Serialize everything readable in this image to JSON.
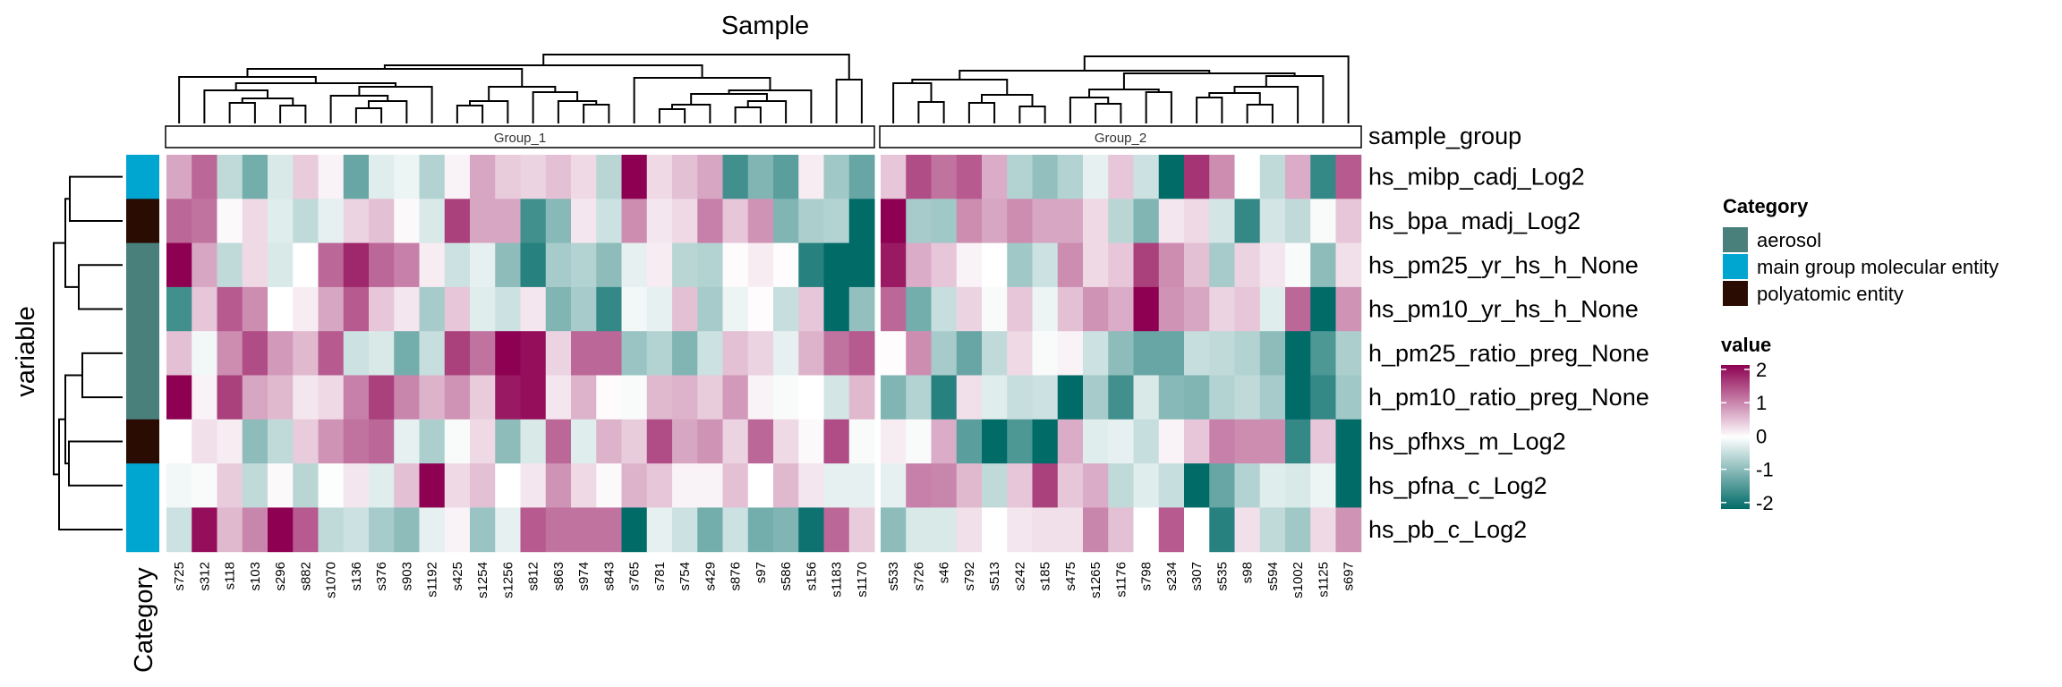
{
  "chart_data": {
    "type": "heatmap",
    "title": "Sample",
    "xlabel": "Sample",
    "ylabel": "variable",
    "row_annotation_label": "Category",
    "column_annotation_label": "sample_group",
    "rows": [
      "hs_mibp_cadj_Log2",
      "hs_bpa_madj_Log2",
      "hs_pm25_yr_hs_h_None",
      "hs_pm10_yr_hs_h_None",
      "h_pm25_ratio_preg_None",
      "h_pm10_ratio_preg_None",
      "hs_pfhxs_m_Log2",
      "hs_pfna_c_Log2",
      "hs_pb_c_Log2"
    ],
    "row_categories": [
      "main group molecular entity",
      "polyatomic entity",
      "aerosol",
      "aerosol",
      "aerosol",
      "aerosol",
      "polyatomic entity",
      "main group molecular entity",
      "main group molecular entity"
    ],
    "columns": [
      "s725",
      "s312",
      "s118",
      "s103",
      "s296",
      "s882",
      "s1070",
      "s136",
      "s376",
      "s903",
      "s1192",
      "s425",
      "s1254",
      "s1256",
      "s812",
      "s863",
      "s974",
      "s843",
      "s765",
      "s781",
      "s754",
      "s429",
      "s876",
      "s97",
      "s586",
      "s156",
      "s1183",
      "s1170",
      "s533",
      "s726",
      "s46",
      "s792",
      "s513",
      "s242",
      "s185",
      "s475",
      "s1265",
      "s1176",
      "s798",
      "s234",
      "s307",
      "s535",
      "s98",
      "s594",
      "s1002",
      "s1125",
      "s697"
    ],
    "groups": [
      {
        "label": "Group_1",
        "count": 28
      },
      {
        "label": "Group_2",
        "count": 19
      }
    ],
    "values": [
      [
        0.7,
        1.2,
        -0.5,
        -1.1,
        -0.3,
        0.4,
        0.1,
        -1.2,
        -0.25,
        -0.15,
        -0.6,
        0.1,
        0.7,
        0.4,
        0.35,
        0.5,
        0.3,
        -0.55,
        2.2,
        0.3,
        0.5,
        0.7,
        -1.5,
        -1.0,
        -1.3,
        0.15,
        -0.75,
        -1.2,
        0.45,
        1.4,
        1.1,
        1.3,
        0.65,
        -0.6,
        -0.85,
        -0.6,
        -0.2,
        0.45,
        -0.4,
        -2.3,
        1.6,
        0.9,
        0.0,
        -0.5,
        0.65,
        -1.6,
        1.3
      ],
      [
        1.2,
        1.1,
        0.05,
        0.3,
        -0.25,
        -0.5,
        -0.2,
        0.35,
        0.5,
        0.05,
        -0.3,
        1.5,
        0.7,
        0.7,
        -1.5,
        -0.95,
        0.2,
        -0.4,
        0.9,
        0.2,
        0.3,
        1.0,
        0.45,
        0.85,
        -1.0,
        -0.65,
        -0.6,
        -2.3,
        2.3,
        -0.7,
        -0.75,
        0.9,
        0.7,
        0.9,
        0.7,
        0.7,
        0.3,
        -0.55,
        -1.0,
        0.2,
        0.3,
        -0.35,
        -1.6,
        -0.35,
        -0.5,
        -0.05,
        0.45
      ],
      [
        2.3,
        0.7,
        -0.5,
        0.3,
        -0.3,
        0.0,
        1.2,
        1.7,
        1.2,
        1.0,
        0.15,
        -0.4,
        -0.2,
        -0.9,
        -1.7,
        -0.7,
        -0.6,
        -0.9,
        -0.2,
        0.15,
        -0.55,
        -0.6,
        0.03,
        0.15,
        0.02,
        -1.7,
        -2.3,
        -2.3,
        1.8,
        0.65,
        0.45,
        0.1,
        0.0,
        -0.75,
        -0.4,
        0.9,
        0.3,
        0.45,
        1.5,
        0.9,
        0.5,
        -0.7,
        0.35,
        0.2,
        -0.05,
        -0.9,
        0.25
      ],
      [
        -1.5,
        0.45,
        1.3,
        0.9,
        0.0,
        0.15,
        0.7,
        1.3,
        0.45,
        0.2,
        -0.7,
        0.45,
        -0.25,
        -0.4,
        0.2,
        -1.0,
        -0.7,
        -1.6,
        -0.1,
        -0.2,
        0.5,
        -0.7,
        -0.15,
        0.02,
        -0.45,
        0.45,
        -2.3,
        -0.85,
        1.2,
        -1.1,
        -0.45,
        0.35,
        -0.05,
        0.45,
        -0.15,
        0.5,
        0.85,
        0.65,
        2.3,
        0.85,
        0.7,
        0.35,
        0.45,
        -0.25,
        1.2,
        -2.3,
        0.85
      ],
      [
        0.5,
        -0.1,
        0.9,
        1.4,
        0.8,
        0.55,
        1.3,
        -0.4,
        -0.3,
        -1.1,
        -0.45,
        1.5,
        1.1,
        2.2,
        1.9,
        0.35,
        1.2,
        1.2,
        -0.8,
        -0.6,
        -1.0,
        -0.4,
        0.5,
        0.35,
        -0.2,
        0.6,
        1.1,
        1.3,
        0.02,
        0.9,
        -0.7,
        -1.2,
        -0.5,
        0.3,
        -0.05,
        0.1,
        -0.4,
        -0.9,
        -1.2,
        -1.2,
        -0.45,
        -0.5,
        -0.6,
        -0.9,
        -2.3,
        -1.4,
        -0.65
      ],
      [
        2.3,
        0.1,
        1.5,
        0.7,
        0.55,
        0.2,
        0.3,
        1.0,
        1.5,
        0.95,
        0.6,
        0.85,
        0.4,
        1.8,
        1.9,
        0.2,
        0.6,
        0.03,
        -0.05,
        0.55,
        0.6,
        0.4,
        0.8,
        0.1,
        -0.05,
        0.0,
        -0.35,
        0.55,
        -1.0,
        -0.6,
        -1.7,
        0.25,
        -0.25,
        -0.45,
        -0.4,
        -2.3,
        -0.7,
        -1.5,
        -0.3,
        -0.95,
        -1.0,
        -0.6,
        -0.5,
        -0.7,
        -2.3,
        -1.6,
        -0.75
      ],
      [
        0.0,
        0.25,
        0.15,
        -0.9,
        -0.5,
        0.4,
        0.85,
        1.1,
        1.2,
        -0.2,
        -0.65,
        -0.05,
        0.3,
        -0.9,
        -0.3,
        1.2,
        -0.25,
        0.6,
        0.4,
        1.4,
        0.7,
        0.85,
        0.35,
        1.2,
        0.3,
        0.05,
        1.4,
        -0.05,
        0.15,
        -0.05,
        0.65,
        -1.3,
        -2.3,
        -1.4,
        -2.3,
        0.65,
        -0.25,
        -0.2,
        -0.45,
        0.1,
        0.45,
        1.0,
        0.9,
        0.9,
        -1.6,
        0.45,
        -2.3
      ],
      [
        -0.1,
        -0.05,
        0.4,
        -0.5,
        0.05,
        -0.55,
        -0.02,
        0.2,
        -0.25,
        0.5,
        2.3,
        0.3,
        0.5,
        0.0,
        0.2,
        0.85,
        0.3,
        0.05,
        0.6,
        0.45,
        0.1,
        0.1,
        0.5,
        0.0,
        0.55,
        0.2,
        -0.2,
        -0.2,
        -0.2,
        1.0,
        0.95,
        0.55,
        -0.5,
        0.45,
        1.5,
        0.45,
        0.65,
        -0.5,
        -0.25,
        -0.45,
        -2.2,
        -1.2,
        -0.6,
        -0.25,
        -0.3,
        -0.15,
        -2.3
      ],
      [
        -0.4,
        1.9,
        0.55,
        0.95,
        2.3,
        1.3,
        -0.5,
        -0.4,
        -0.7,
        -0.9,
        -0.2,
        0.1,
        -0.8,
        -0.2,
        1.3,
        1.1,
        1.1,
        1.1,
        -2.3,
        -0.2,
        -0.4,
        -1.1,
        -0.4,
        -1.1,
        -1.0,
        -1.9,
        1.2,
        0.4,
        -0.9,
        -0.3,
        -0.3,
        0.25,
        0.0,
        0.2,
        0.25,
        0.25,
        0.95,
        0.5,
        0.0,
        1.3,
        0.0,
        -1.7,
        0.25,
        -0.5,
        -0.75,
        0.3,
        0.85
      ]
    ],
    "color_scale": {
      "min": -2,
      "max": 2,
      "low": "#016b68",
      "mid": "#ffffff",
      "high": "#8e0152"
    },
    "legend": {
      "category_title": "Category",
      "categories": [
        {
          "label": "aerosol",
          "color": "#4a807c"
        },
        {
          "label": "main group molecular entity",
          "color": "#00a5d0"
        },
        {
          "label": "polyatomic entity",
          "color": "#2a0c02"
        }
      ],
      "value_title": "value",
      "ticks": [
        "2",
        "1",
        "0",
        "-1",
        "-2"
      ],
      "placement": "right"
    },
    "dendrograms": {
      "rows": true,
      "columns": true
    }
  }
}
